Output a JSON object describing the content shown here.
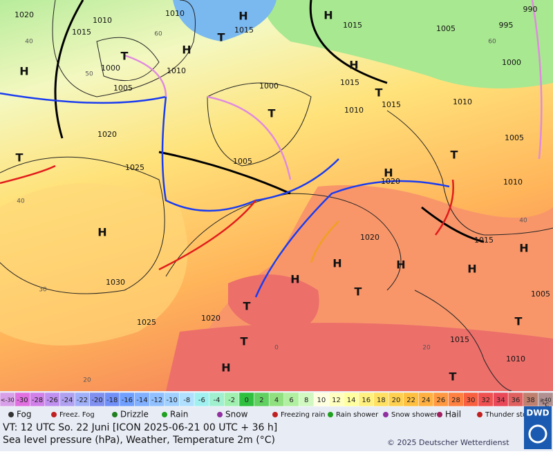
{
  "map": {
    "pressure_labels": [
      "1020",
      "1010",
      "1010",
      "1015",
      "1015",
      "1015",
      "1005",
      "995",
      "990",
      "1000",
      "1010",
      "1005",
      "1000",
      "1015",
      "1015",
      "1010",
      "1010",
      "1000",
      "1020",
      "1025",
      "1005",
      "1005",
      "1020",
      "1010",
      "1015",
      "1020",
      "1030",
      "1025",
      "1020",
      "1005",
      "1015",
      "1010"
    ],
    "highs": [
      "H",
      "H",
      "H",
      "H",
      "H",
      "H",
      "H",
      "H",
      "H",
      "H",
      "H",
      "H",
      "H"
    ],
    "lows": [
      "T",
      "T",
      "T",
      "T",
      "T",
      "T",
      "T",
      "T",
      "T",
      "T",
      "T"
    ],
    "temperature_labels": [
      "40",
      "60",
      "50",
      "40",
      "30",
      "20",
      "0",
      "20",
      "40",
      "60"
    ]
  },
  "legend": {
    "scale": [
      "<-30",
      "-30",
      "-28",
      "-26",
      "-24",
      "-22",
      "-20",
      "-18",
      "-16",
      "-14",
      "-12",
      "-10",
      "-8",
      "-6",
      "-4",
      "-2",
      "0",
      "2",
      "4",
      "6",
      "8",
      "10",
      "12",
      "14",
      "16",
      "18",
      "20",
      "22",
      "24",
      "26",
      "28",
      "30",
      "32",
      "34",
      "36",
      "38",
      "≥40"
    ],
    "unit": "°C",
    "items": [
      "Fog",
      "Freez. Fog",
      "Drizzle",
      "Rain",
      "Snow",
      "Freezing rain",
      "Rain shower",
      "Snow shower",
      "Hail",
      "Thunder storm"
    ]
  },
  "footer": {
    "valid_time": "VT: 12 UTC So.  22 Juni [ICON 2025-06-21  00 UTC + 36 h]",
    "description": "Sea level pressure (hPa), Weather, Temperature 2m (°C)",
    "copyright": "© 2025 Deutscher Wetterdienst",
    "logo": "DWD"
  }
}
